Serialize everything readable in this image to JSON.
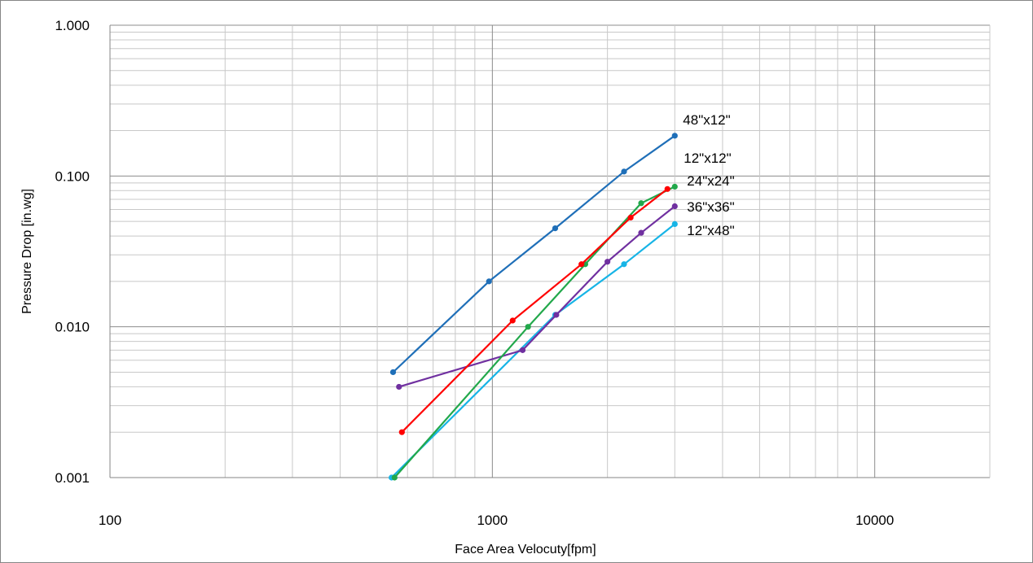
{
  "chart_data": {
    "type": "line",
    "title": "",
    "xlabel": "Face Area Velocuty[fpm]",
    "ylabel": "Pressure Drop [in.wg]",
    "x_scale": "log",
    "y_scale": "log",
    "xlim": [
      100,
      20000
    ],
    "ylim": [
      0.001,
      1
    ],
    "x_ticks": [
      100,
      1000,
      10000
    ],
    "x_tick_labels": [
      "100",
      "1000",
      "10000"
    ],
    "y_ticks": [
      0.001,
      0.01,
      0.1,
      1
    ],
    "y_tick_labels": [
      "0.001",
      "0.010",
      "0.100",
      "1.000"
    ],
    "grid": "major and minor",
    "legend": "none (series labelled at line ends)",
    "series": [
      {
        "name": "48\"x12\"",
        "color": "#1f6fb8",
        "x": [
          550,
          980,
          1460,
          2210,
          3000
        ],
        "y": [
          0.005,
          0.02,
          0.045,
          0.107,
          0.185
        ]
      },
      {
        "name": "12\"x12\"",
        "color": "#ff0000",
        "x": [
          580,
          1130,
          1710,
          2300,
          2870
        ],
        "y": [
          0.002,
          0.011,
          0.026,
          0.053,
          0.082
        ]
      },
      {
        "name": "24\"x24\"",
        "color": "#22a84b",
        "x": [
          555,
          1240,
          1750,
          2450,
          3000
        ],
        "y": [
          0.001,
          0.01,
          0.026,
          0.066,
          0.085
        ]
      },
      {
        "name": "36\"x36\"",
        "color": "#7030a0",
        "x": [
          570,
          1200,
          1470,
          2000,
          2450,
          3000
        ],
        "y": [
          0.004,
          0.007,
          0.012,
          0.027,
          0.042,
          0.063
        ]
      },
      {
        "name": "12\"x48\"",
        "color": "#17b4e6",
        "x": [
          545,
          1460,
          2210,
          3000
        ],
        "y": [
          0.001,
          0.012,
          0.026,
          0.048
        ]
      }
    ]
  }
}
